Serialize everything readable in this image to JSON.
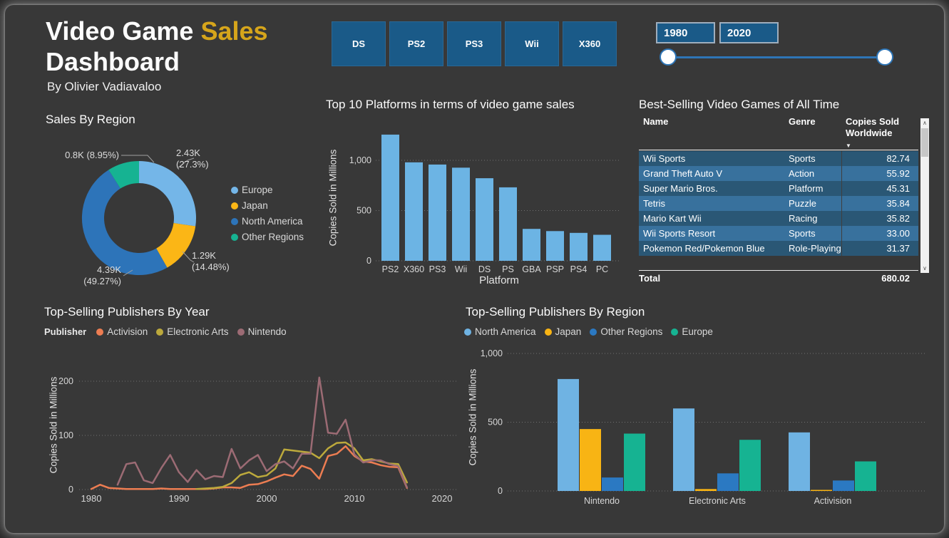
{
  "theme": {
    "panel_bg": "#383838",
    "outer_bg": "#262626",
    "title_gold": "#D6A51B",
    "slicer_blue": "#1A5A88",
    "slicer_border": "#9FAEBD",
    "slider_blue": "#2E75B6",
    "table_row_dark": "#2A5775",
    "table_row_light": "#38719D"
  },
  "header": {
    "title_line1_white": "Video Game",
    "title_gold": "Sales",
    "title_line2_white": "Dashboard",
    "subtitle": "By Olivier Vadiavaloo"
  },
  "platform_slicer": {
    "buttons": [
      "DS",
      "PS2",
      "PS3",
      "Wii",
      "X360"
    ]
  },
  "year_slicer": {
    "start_value": "1980",
    "end_value": "2020"
  },
  "chart_data": [
    {
      "type": "pie",
      "title": "Sales By Region",
      "donut_hole": true,
      "legend_position": "right",
      "slices": [
        {
          "name": "Europe",
          "pct": 27.3,
          "value_label": "2.43K",
          "pct_label": "(27.3%)",
          "color": "#74B6E8"
        },
        {
          "name": "Japan",
          "pct": 14.48,
          "value_label": "1.29K",
          "pct_label": "(14.48%)",
          "color": "#FBB616"
        },
        {
          "name": "North America",
          "pct": 49.27,
          "value_label": "4.39K",
          "pct_label": "(49.27%)",
          "color": "#2D74B9"
        },
        {
          "name": "Other Regions",
          "pct": 8.95,
          "value_label": "0.8K",
          "pct_label": "(8.95%)",
          "color": "#16B392"
        }
      ]
    },
    {
      "type": "bar",
      "title": "Top 10 Platforms in terms of video game sales",
      "categories": [
        "PS2",
        "X360",
        "PS3",
        "Wii",
        "DS",
        "PS",
        "GBA",
        "PSP",
        "PS4",
        "PC"
      ],
      "values": [
        1256,
        980,
        958,
        927,
        822,
        731,
        318,
        296,
        278,
        259
      ],
      "color": "#6CB4E4",
      "xlabel": "Platform",
      "ylabel": "Copies Sold in Millions",
      "yticks": [
        0,
        500,
        1000
      ],
      "ytick_labels": [
        "0",
        "500",
        "1,000"
      ],
      "ylim": [
        0,
        1330
      ],
      "grid": "dotted"
    },
    {
      "type": "table",
      "title": "Best-Selling Video Games of All Time",
      "columns": [
        "Name",
        "Genre",
        "Copies Sold Worldwide"
      ],
      "sort": {
        "column": "Copies Sold Worldwide",
        "direction": "desc",
        "icon": "▼"
      },
      "rows": [
        {
          "name": "Wii Sports",
          "genre": "Sports",
          "copies": "82.74"
        },
        {
          "name": "Grand Theft Auto V",
          "genre": "Action",
          "copies": "55.92"
        },
        {
          "name": "Super Mario Bros.",
          "genre": "Platform",
          "copies": "45.31"
        },
        {
          "name": "Tetris",
          "genre": "Puzzle",
          "copies": "35.84"
        },
        {
          "name": "Mario Kart Wii",
          "genre": "Racing",
          "copies": "35.82"
        },
        {
          "name": "Wii Sports Resort",
          "genre": "Sports",
          "copies": "33.00"
        },
        {
          "name": "Pokemon Red/Pokemon Blue",
          "genre": "Role-Playing",
          "copies": "31.37"
        }
      ],
      "total_label": "Total",
      "total_value": "680.02"
    },
    {
      "type": "line",
      "title": "Top-Selling Publishers By Year",
      "legend_title": "Publisher",
      "ylabel": "Copies Sold in Millions",
      "xticks": [
        1980,
        1990,
        2000,
        2010,
        2020
      ],
      "xtick_labels": [
        "1980",
        "1990",
        "2000",
        "2010",
        "2020"
      ],
      "yticks": [
        0,
        100,
        200
      ],
      "ytick_labels": [
        "0",
        "100",
        "200"
      ],
      "xlim": [
        1979,
        2021
      ],
      "ylim": [
        0,
        215
      ],
      "grid": "dotted",
      "series": [
        {
          "name": "Activision",
          "color": "#ED7D52",
          "start_year": 1980,
          "values": [
            1,
            9,
            3,
            2,
            1,
            1,
            1,
            1,
            2,
            1,
            1,
            1,
            1,
            1,
            2,
            4,
            4,
            3,
            9,
            10,
            15,
            22,
            28,
            25,
            44,
            38,
            20,
            62,
            66,
            80,
            62,
            52,
            50,
            45,
            42,
            41,
            3
          ]
        },
        {
          "name": "Electronic Arts",
          "color": "#BCA93C",
          "start_year": 1992,
          "values": [
            1,
            2,
            3,
            5,
            12,
            27,
            32,
            23,
            26,
            39,
            74,
            72,
            70,
            68,
            58,
            76,
            86,
            87,
            76,
            54,
            56,
            52,
            48,
            47,
            13
          ]
        },
        {
          "name": "Nintendo",
          "color": "#9C6B74",
          "start_year": 1983,
          "values": [
            9,
            47,
            50,
            17,
            12,
            40,
            64,
            32,
            14,
            36,
            19,
            25,
            23,
            75,
            39,
            54,
            64,
            34,
            47,
            52,
            39,
            66,
            66,
            207,
            105,
            103,
            129,
            65,
            50,
            54,
            54,
            47,
            43,
            4
          ]
        }
      ]
    },
    {
      "type": "bar",
      "title": "Top-Selling Publishers By Region",
      "categories": [
        "Nintendo",
        "Electronic Arts",
        "Activision"
      ],
      "ylabel": "Copies Sold in Millions",
      "yticks": [
        0,
        500,
        1000
      ],
      "ytick_labels": [
        "0",
        "500",
        "1,000"
      ],
      "ylim": [
        0,
        1090
      ],
      "grid": "dotted",
      "series": [
        {
          "name": "North America",
          "color": "#6FB3E3",
          "values": [
            814,
            600,
            426
          ]
        },
        {
          "name": "Japan",
          "color": "#F8B414",
          "values": [
            450,
            14,
            8
          ]
        },
        {
          "name": "Other Regions",
          "color": "#2B79C2",
          "values": [
            98,
            128,
            76
          ]
        },
        {
          "name": "Europe",
          "color": "#16B392",
          "values": [
            417,
            372,
            215
          ]
        }
      ]
    }
  ]
}
